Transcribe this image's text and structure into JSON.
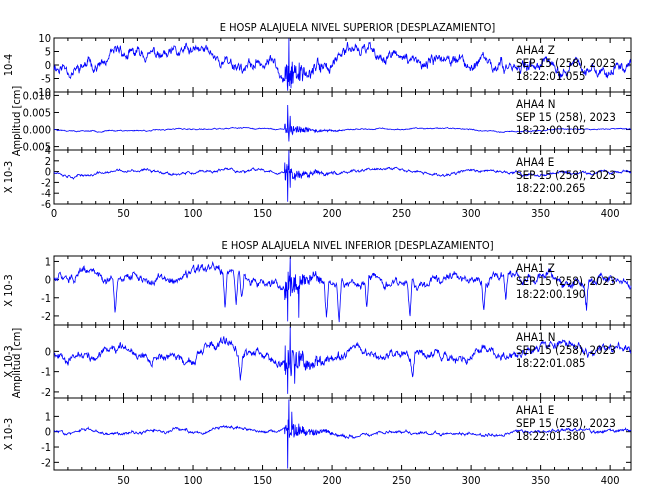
{
  "chart_data": [
    {
      "type": "line",
      "title": "E HOSP ALAJUELA NIVEL SUPERIOR [DESPLAZAMIENTO]",
      "ylabel": "Amplitud [cm]",
      "xlim": [
        0,
        415
      ],
      "xticks": [
        0,
        50,
        100,
        150,
        200,
        250,
        300,
        350,
        400
      ],
      "line_color": "#0000ff",
      "traces": [
        {
          "station": "AHA4",
          "component": "Z",
          "date": "SEP 15 (258), 2023",
          "time": "18:22:01.055",
          "scale_label": "10-4",
          "yticks": [
            -10,
            -5,
            0,
            5,
            10
          ],
          "ylim": [
            -10,
            10
          ],
          "noise": 3.6,
          "burst": 6.5,
          "seed": 11,
          "spikes": [
            [
              168,
              -9.5
            ],
            [
              169,
              9.8
            ],
            [
              171,
              -7
            ]
          ],
          "dips": []
        },
        {
          "station": "AHA4",
          "component": "N",
          "date": "SEP 15 (258), 2023",
          "time": "18:22:00.105",
          "scale_label": "",
          "yticks": [
            -0.005,
            0.0,
            0.005,
            0.01
          ],
          "ytick_labels": [
            "-0.005",
            "0.000",
            "0.005",
            "0.010"
          ],
          "ylim": [
            -0.006,
            0.011
          ],
          "noise": 0.0003,
          "burst": 0.0022,
          "seed": 23,
          "spikes": [
            [
              168,
              0.0072
            ],
            [
              169,
              -0.0035
            ],
            [
              170,
              0.004
            ]
          ],
          "dips": []
        },
        {
          "station": "AHA4",
          "component": "E",
          "date": "SEP 15 (258), 2023",
          "time": "18:22:00.265",
          "scale_label": "X 10-3",
          "yticks": [
            -6,
            -4,
            -2,
            0,
            2,
            4
          ],
          "ylim": [
            -6,
            4
          ],
          "noise": 0.45,
          "burst": 1.8,
          "seed": 37,
          "spikes": [
            [
              168,
              -5.6
            ],
            [
              169,
              3.9
            ],
            [
              170,
              -3
            ]
          ],
          "dips": []
        }
      ]
    },
    {
      "type": "line",
      "title": "E HOSP ALAJUELA NIVEL INFERIOR [DESPLAZAMIENTO]",
      "ylabel": "Amplitud [cm]",
      "xlim": [
        0,
        415
      ],
      "xticks": [
        50,
        100,
        150,
        200,
        250,
        300,
        350,
        400
      ],
      "line_color": "#0000ff",
      "traces": [
        {
          "station": "AHA1",
          "component": "Z",
          "date": "SEP 15 (258), 2023",
          "time": "18:22:00.190",
          "scale_label": "X 10-3",
          "yticks": [
            -2,
            -1,
            0,
            1
          ],
          "ylim": [
            -2.5,
            1.3
          ],
          "noise": 0.42,
          "burst": 0.9,
          "seed": 51,
          "spikes": [
            [
              168,
              -2.3
            ],
            [
              170,
              1.2
            ],
            [
              176,
              -2.1
            ]
          ],
          "dips": [
            [
              44,
              -1.9
            ],
            [
              123,
              -2.0
            ],
            [
              131,
              -1.9
            ],
            [
              135,
              -1.6
            ],
            [
              196,
              -2.0
            ],
            [
              205,
              -2.2
            ],
            [
              225,
              -1.5
            ],
            [
              256,
              -1.7
            ],
            [
              309,
              -1.5
            ],
            [
              325,
              -1.3
            ],
            [
              383,
              -1.2
            ]
          ]
        },
        {
          "station": "AHA1",
          "component": "N",
          "date": "SEP 15 (258), 2023",
          "time": "18:22:01.085",
          "scale_label": "X 10-3",
          "yticks": [
            -2,
            -1,
            0
          ],
          "ylim": [
            -2.3,
            1.3
          ],
          "noise": 0.38,
          "burst": 0.9,
          "seed": 67,
          "spikes": [
            [
              168,
              -2.1
            ],
            [
              170,
              1.2
            ],
            [
              173,
              -1.6
            ]
          ],
          "dips": [
            [
              134,
              -1.2
            ],
            [
              258,
              -1.0
            ]
          ]
        },
        {
          "station": "AHA1",
          "component": "E",
          "date": "SEP 15 (258), 2023",
          "time": "18:22:01.380",
          "scale_label": "X 10-3",
          "yticks": [
            -2,
            -1,
            0,
            1
          ],
          "ylim": [
            -2.5,
            2.2
          ],
          "noise": 0.18,
          "burst": 0.8,
          "seed": 83,
          "spikes": [
            [
              168,
              -2.4
            ],
            [
              169,
              2.1
            ],
            [
              171,
              1.3
            ]
          ],
          "dips": []
        }
      ]
    }
  ]
}
